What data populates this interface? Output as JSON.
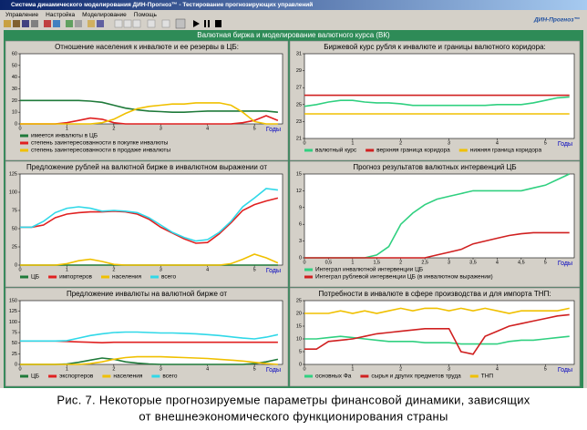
{
  "window": {
    "title": "Система динамического моделирования ДИН-Прогноз™ - Тестирование прогнозирующих управлений",
    "logo": "ДИН-Прогноз™",
    "menu": [
      "Управление",
      "Настройка",
      "Моделирование",
      "Помощь"
    ],
    "header": "Валютная биржа и моделирование валютного курса (ВК)"
  },
  "caption": [
    "Рис. 7. Некоторые прогнозируемые параметры финансовой динамики, зависящих",
    "от внешнеэкономического функционирования страны"
  ],
  "chart_data": [
    {
      "type": "line",
      "title": "Отношение населения к инвалюте и ее резервы в ЦБ:",
      "x_label": "Годы",
      "x": [
        0,
        0.25,
        0.5,
        0.75,
        1,
        1.25,
        1.5,
        1.75,
        2,
        2.25,
        2.5,
        2.75,
        3,
        3.25,
        3.5,
        3.75,
        4,
        4.25,
        4.5,
        4.75,
        5,
        5.25,
        5.5
      ],
      "xlim": [
        0,
        5.6
      ],
      "xticks": [
        0,
        1,
        2,
        3,
        4,
        5
      ],
      "ylim": [
        0,
        60
      ],
      "yticks": [
        0,
        10,
        20,
        30,
        40,
        50,
        60
      ],
      "series": [
        {
          "name": "имеется инвалюты в ЦБ",
          "color": "#1f7a3a",
          "values": [
            20,
            20,
            20,
            20,
            20,
            20,
            19.5,
            18.5,
            16,
            13.5,
            12,
            11,
            10.5,
            10,
            10,
            10.5,
            11,
            11,
            11,
            11,
            11,
            11,
            10
          ]
        },
        {
          "name": "степень заинтересованности в покупке инвалюты",
          "color": "#e02020",
          "values": [
            0,
            0,
            0,
            0,
            1,
            3,
            5,
            4,
            1,
            0,
            0,
            0,
            0,
            0,
            0,
            0,
            0,
            0,
            0,
            1,
            3,
            7,
            3
          ]
        },
        {
          "name": "степень заинтересованности в продаже инвалюты",
          "color": "#f0c000",
          "values": [
            0,
            0,
            0,
            0,
            0,
            0,
            0,
            1,
            4,
            9,
            13,
            15,
            16,
            17,
            17,
            18,
            18,
            18,
            16,
            10,
            2,
            0,
            0
          ]
        }
      ]
    },
    {
      "type": "line",
      "title": "Биржевой курс рубля к инвалюте и границы валютного коридора:",
      "x_label": "Годы",
      "x": [
        0,
        0.25,
        0.5,
        0.75,
        1,
        1.25,
        1.5,
        1.75,
        2,
        2.25,
        2.5,
        2.75,
        3,
        3.25,
        3.5,
        3.75,
        4,
        4.25,
        4.5,
        4.75,
        5,
        5.25,
        5.5
      ],
      "xlim": [
        0,
        5.6
      ],
      "xticks": [
        0,
        1,
        2,
        3,
        4,
        5
      ],
      "ylim": [
        21,
        31
      ],
      "yticks": [
        21,
        23,
        25,
        27,
        29,
        31
      ],
      "series": [
        {
          "name": "валютный курс",
          "color": "#30d080",
          "values": [
            24.8,
            25,
            25.3,
            25.5,
            25.5,
            25.3,
            25.2,
            25.2,
            25.1,
            24.9,
            24.9,
            24.9,
            24.9,
            24.9,
            24.9,
            24.9,
            25,
            25,
            25,
            25.2,
            25.5,
            25.8,
            25.9
          ]
        },
        {
          "name": "верхняя граница коридора",
          "color": "#d02020",
          "values": [
            26.1,
            26.1,
            26.1,
            26.1,
            26.1,
            26.1,
            26.1,
            26.1,
            26.1,
            26.1,
            26.1,
            26.1,
            26.1,
            26.1,
            26.1,
            26.1,
            26.1,
            26.1,
            26.1,
            26.1,
            26.1,
            26.1,
            26.1
          ]
        },
        {
          "name": "нижняя граница коридора",
          "color": "#f0c000",
          "values": [
            23.9,
            23.9,
            23.9,
            23.9,
            23.9,
            23.9,
            23.9,
            23.9,
            23.9,
            23.9,
            23.9,
            23.9,
            23.9,
            23.9,
            23.9,
            23.9,
            23.9,
            23.9,
            23.9,
            23.9,
            23.9,
            23.9,
            23.9
          ]
        }
      ]
    },
    {
      "type": "line",
      "title": "Предложение рублей на валютной бирже в инвалютном выражении от",
      "x_label": "Годы",
      "x": [
        0,
        0.25,
        0.5,
        0.75,
        1,
        1.25,
        1.5,
        1.75,
        2,
        2.25,
        2.5,
        2.75,
        3,
        3.25,
        3.5,
        3.75,
        4,
        4.25,
        4.5,
        4.75,
        5,
        5.25,
        5.5
      ],
      "xlim": [
        0,
        5.6
      ],
      "xticks": [
        0,
        1,
        2,
        3,
        4,
        5
      ],
      "ylim": [
        0,
        125
      ],
      "yticks": [
        0,
        25,
        50,
        75,
        100,
        125
      ],
      "series": [
        {
          "name": "ЦБ",
          "color": "#1f7a3a",
          "values": [
            0,
            0,
            0,
            0,
            0,
            0,
            0,
            0,
            0,
            0,
            0,
            0,
            0,
            0,
            0,
            0,
            0,
            0,
            0,
            0,
            0,
            0,
            0
          ]
        },
        {
          "name": "импортеров",
          "color": "#e02020",
          "values": [
            52,
            52,
            55,
            65,
            70,
            72,
            73,
            73,
            74,
            73,
            70,
            63,
            52,
            44,
            36,
            30,
            31,
            43,
            58,
            75,
            83,
            88,
            92
          ]
        },
        {
          "name": "населения",
          "color": "#f0c000",
          "values": [
            0,
            0,
            0,
            0,
            2,
            6,
            8,
            5,
            1,
            0,
            0,
            0,
            0,
            0,
            0,
            0,
            0,
            0,
            2,
            8,
            15,
            10,
            3
          ]
        },
        {
          "name": "всего",
          "color": "#30d8e8",
          "values": [
            52,
            52,
            60,
            72,
            78,
            80,
            78,
            74,
            75,
            74,
            72,
            65,
            55,
            45,
            38,
            33,
            35,
            45,
            60,
            80,
            92,
            105,
            103
          ]
        }
      ]
    },
    {
      "type": "line",
      "title": "Прогноз результатов валютных интервенций ЦБ",
      "x_label": "Годы",
      "x": [
        0,
        0.25,
        0.5,
        0.75,
        1,
        1.25,
        1.5,
        1.75,
        2,
        2.25,
        2.5,
        2.75,
        3,
        3.25,
        3.5,
        3.75,
        4,
        4.25,
        4.5,
        4.75,
        5,
        5.25,
        5.5
      ],
      "xlim": [
        0,
        5.6
      ],
      "xticks": [
        0,
        {
          "value": 0.5,
          "label": "0,5"
        },
        1,
        {
          "value": 1.5,
          "label": "1,5"
        },
        2,
        {
          "value": 2.5,
          "label": "2,5"
        },
        3,
        {
          "value": 3.5,
          "label": "3,5"
        },
        4,
        {
          "value": 4.5,
          "label": "4,5"
        },
        5
      ],
      "ylim": [
        0,
        15
      ],
      "yticks": [
        0,
        3,
        6,
        9,
        12,
        15
      ],
      "series": [
        {
          "name": "Интеграл инвалютной интервенции ЦБ",
          "color": "#30d080",
          "values": [
            0,
            0,
            0,
            0,
            0,
            0,
            0.5,
            2,
            6,
            8,
            9.5,
            10.5,
            11,
            11.5,
            12,
            12,
            12,
            12,
            12,
            12.5,
            13,
            14,
            15
          ]
        },
        {
          "name": "Интеграл рублевой интервенции ЦБ (в инвалютном выражении)",
          "color": "#d02020",
          "values": [
            0,
            0,
            0,
            0,
            0,
            0,
            0,
            0,
            0,
            0,
            0,
            0.5,
            1,
            1.5,
            2.5,
            3,
            3.5,
            4,
            4.3,
            4.5,
            4.5,
            4.5,
            4.5
          ]
        }
      ]
    },
    {
      "type": "line",
      "title": "Предложение инвалюты на валютной бирже от",
      "x_label": "Годы",
      "x": [
        0,
        0.25,
        0.5,
        0.75,
        1,
        1.25,
        1.5,
        1.75,
        2,
        2.25,
        2.5,
        2.75,
        3,
        3.25,
        3.5,
        3.75,
        4,
        4.25,
        4.5,
        4.75,
        5,
        5.25,
        5.5
      ],
      "xlim": [
        0,
        5.6
      ],
      "xticks": [
        0,
        1,
        2,
        3,
        4,
        5
      ],
      "ylim": [
        0,
        150
      ],
      "yticks": [
        0,
        25,
        50,
        75,
        100,
        125,
        150
      ],
      "series": [
        {
          "name": "ЦБ",
          "color": "#1f7a3a",
          "values": [
            0,
            0,
            0,
            0,
            1,
            5,
            10,
            15,
            12,
            6,
            3,
            1,
            0,
            0,
            0,
            0,
            0,
            0,
            0,
            0,
            2,
            6,
            12
          ]
        },
        {
          "name": "экспортеров",
          "color": "#e02020",
          "values": [
            55,
            55,
            55,
            55,
            54,
            53,
            52,
            51,
            52,
            52,
            52,
            52,
            52,
            52,
            52,
            52,
            52,
            52,
            52,
            52,
            52,
            52,
            52
          ]
        },
        {
          "name": "населения",
          "color": "#f0c000",
          "values": [
            0,
            0,
            0,
            0,
            0,
            0,
            2,
            6,
            12,
            16,
            18,
            18,
            18,
            17,
            16,
            15,
            14,
            12,
            10,
            8,
            5,
            2,
            0
          ]
        },
        {
          "name": "всего",
          "color": "#30d8e8",
          "values": [
            55,
            55,
            55,
            55,
            56,
            62,
            68,
            72,
            75,
            76,
            76,
            75,
            74,
            74,
            73,
            72,
            70,
            68,
            65,
            62,
            60,
            64,
            70
          ]
        }
      ]
    },
    {
      "type": "line",
      "title": "Потребности в инвалюте в сфере производства и для импорта ТНП:",
      "x_label": "Годы",
      "x": [
        0,
        0.25,
        0.5,
        0.75,
        1,
        1.25,
        1.5,
        1.75,
        2,
        2.25,
        2.5,
        2.75,
        3,
        3.25,
        3.5,
        3.75,
        4,
        4.25,
        4.5,
        4.75,
        5,
        5.25,
        5.5
      ],
      "xlim": [
        0,
        5.6
      ],
      "xticks": [
        0,
        1,
        2,
        3,
        4,
        5
      ],
      "ylim": [
        0,
        25
      ],
      "yticks": [
        0,
        5,
        10,
        15,
        20,
        25
      ],
      "series": [
        {
          "name": "основных Фа",
          "color": "#30d080",
          "values": [
            10,
            10,
            10.5,
            11,
            10.5,
            10,
            9.5,
            9,
            9,
            9,
            8.5,
            8.5,
            8.5,
            8,
            8,
            8,
            8,
            9,
            9.5,
            9.5,
            10,
            10.5,
            11
          ]
        },
        {
          "name": "сырья и других предметов труда",
          "color": "#d02020",
          "values": [
            6,
            6,
            9,
            9.5,
            10,
            11,
            12,
            12.5,
            13,
            13.5,
            14,
            14,
            14,
            5,
            4,
            11,
            13,
            15,
            16,
            17,
            18,
            19,
            19.5
          ]
        },
        {
          "name": "ТНП",
          "color": "#f0c000",
          "values": [
            20,
            20,
            20,
            21,
            20,
            21,
            20,
            21,
            22,
            21,
            22,
            22,
            21,
            22,
            21,
            22,
            21,
            20,
            21,
            21,
            21,
            21,
            22
          ]
        }
      ]
    }
  ]
}
